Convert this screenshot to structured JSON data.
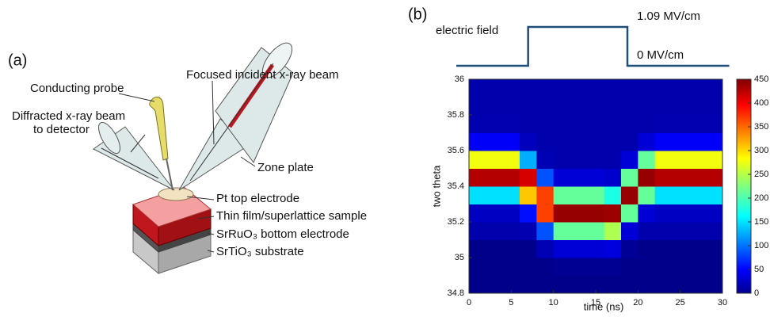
{
  "panel_a": {
    "label": "(a)",
    "labels": [
      "Conducting probe",
      "Diffracted x-ray beam",
      "to detector",
      "Focused incident x-ray beam",
      "Zone plate",
      "Pt top electrode",
      "Thin film/superlattice sample",
      "SrRuO₃ bottom electrode",
      "SrTiO₃ substrate"
    ]
  },
  "chart_data": [
    {
      "type": "line",
      "panel_label": "(b)",
      "label": "electric field",
      "color": "#1f4e79",
      "x": [
        -1.5,
        7,
        7,
        18.75,
        18.75,
        30.8
      ],
      "values": [
        0,
        0,
        1.09,
        1.09,
        0,
        0
      ],
      "level_labels": [
        {
          "value": 1.09,
          "label": "1.09 MV/cm"
        },
        {
          "value": 0,
          "label": "0 MV/cm"
        }
      ],
      "xlim": [
        0,
        30
      ],
      "ylim": [
        0,
        1.09
      ]
    },
    {
      "type": "heatmap",
      "cmap": "jet",
      "x_bins": [
        0,
        2,
        4,
        6,
        8,
        10,
        12,
        14,
        16,
        18,
        20,
        22,
        24,
        26,
        28,
        30
      ],
      "y_bins": [
        34.8,
        34.9,
        35,
        35.1,
        35.2,
        35.3,
        35.4,
        35.5,
        35.6,
        35.7,
        35.8,
        35.9,
        36
      ],
      "values": [
        [
          5,
          5,
          5,
          5,
          5,
          5,
          5,
          5,
          5,
          5,
          5,
          5,
          5,
          5,
          5
        ],
        [
          5,
          5,
          5,
          5,
          5,
          8,
          8,
          8,
          8,
          5,
          5,
          5,
          5,
          5,
          5
        ],
        [
          5,
          5,
          5,
          5,
          23,
          38,
          38,
          38,
          42,
          10,
          5,
          5,
          5,
          5,
          5
        ],
        [
          20,
          20,
          20,
          22,
          92,
          213,
          213,
          213,
          245,
          38,
          20,
          20,
          20,
          20,
          20
        ],
        [
          30,
          30,
          30,
          62,
          365,
          440,
          440,
          440,
          437,
          213,
          38,
          30,
          30,
          30,
          30
        ],
        [
          155,
          155,
          155,
          306,
          365,
          213,
          213,
          213,
          180,
          440,
          213,
          155,
          155,
          155,
          155
        ],
        [
          427,
          427,
          427,
          412,
          92,
          38,
          38,
          38,
          34,
          213,
          440,
          427,
          427,
          427,
          427
        ],
        [
          275,
          275,
          275,
          133,
          23,
          20,
          20,
          20,
          20,
          38,
          213,
          275,
          275,
          275,
          275
        ],
        [
          54,
          54,
          54,
          27,
          20,
          20,
          20,
          20,
          20,
          20,
          38,
          54,
          54,
          54,
          54
        ],
        [
          22,
          22,
          22,
          20,
          20,
          20,
          20,
          20,
          20,
          20,
          20,
          22,
          22,
          22,
          22
        ],
        [
          20,
          20,
          20,
          20,
          20,
          20,
          20,
          20,
          20,
          20,
          20,
          20,
          20,
          20,
          20
        ],
        [
          20,
          20,
          20,
          20,
          20,
          20,
          20,
          20,
          20,
          20,
          20,
          20,
          20,
          20,
          20
        ]
      ],
      "xlim": [
        0,
        30
      ],
      "ylim": [
        34.8,
        36
      ],
      "xticks": [
        0,
        5,
        10,
        15,
        20,
        25,
        30
      ],
      "yticks": [
        34.8,
        35,
        35.2,
        35.4,
        35.6,
        35.8,
        36
      ],
      "xlabel": "time (ns)",
      "ylabel": "two theta",
      "clim": [
        0,
        450
      ],
      "cticks": [
        0,
        50,
        100,
        150,
        200,
        250,
        300,
        350,
        400,
        450
      ]
    }
  ]
}
